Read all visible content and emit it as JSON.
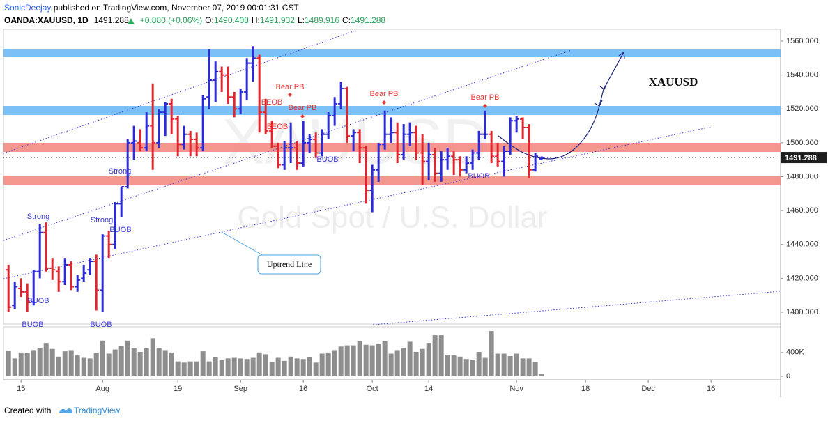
{
  "header": {
    "author": "SonicDeejay",
    "published": "published on TradingView.com, November 07, 2019 00:01:31 CST",
    "symbol": "OANDA:XAUUSD, 1D",
    "change": "+0.880 (+0.06%)",
    "open_label": "O:",
    "high_label": "H:",
    "low_label": "L:",
    "close_label": "C:"
  },
  "footer": {
    "created": "Created with",
    "brand": "TradingView"
  },
  "chart_data": {
    "type": "ohlc",
    "watermark": {
      "symbol": "XAUUSD",
      "description": "Gold Spot / U.S. Dollar"
    },
    "annotations": [
      "Strong",
      "Strong",
      "Strong",
      "BUOB",
      "BUOB",
      "BUOB",
      "BUOB",
      "BUOB",
      "BUOB",
      "BEOB",
      "BEOB",
      "Bear PB",
      "Bear PB",
      "Bear PB",
      "Bear PB",
      "XAUUSD",
      "Uptrend Line"
    ],
    "up_color": "#2b2bd9",
    "down_color": "#e3262e",
    "open": [
      1425,
      1404,
      1414,
      1412,
      1406,
      1424,
      1447,
      1426,
      1424,
      1418,
      1428,
      1415,
      1420,
      1425,
      1430,
      1413,
      1445,
      1440,
      1464,
      1474,
      1500,
      1500,
      1497,
      1510,
      1500,
      1518,
      1523,
      1514,
      1499,
      1505,
      1502,
      1497,
      1527,
      1537,
      1542,
      1540,
      1527,
      1520,
      1530,
      1547,
      1550,
      1518,
      1507,
      1498,
      1487,
      1497,
      1497,
      1488,
      1500,
      1502,
      1494,
      1505,
      1516,
      1523,
      1532,
      1504,
      1506,
      1497,
      1472,
      1484,
      1499,
      1505,
      1506,
      1493,
      1505,
      1506,
      1494,
      1489,
      1493,
      1482,
      1490,
      1492,
      1490,
      1484,
      1488,
      1494,
      1505,
      1505,
      1492,
      1489,
      1495,
      1513,
      1514,
      1509,
      1484,
      1490.408
    ],
    "high": [
      1428,
      1418,
      1420,
      1417,
      1425,
      1452,
      1453,
      1432,
      1427,
      1432,
      1430,
      1422,
      1428,
      1432,
      1434,
      1446,
      1448,
      1465,
      1474,
      1502,
      1510,
      1508,
      1518,
      1535,
      1520,
      1524,
      1526,
      1516,
      1510,
      1507,
      1506,
      1528,
      1555,
      1548,
      1545,
      1545,
      1530,
      1532,
      1550,
      1557,
      1552,
      1526,
      1513,
      1500,
      1501,
      1512,
      1501,
      1513,
      1505,
      1506,
      1508,
      1518,
      1527,
      1536,
      1533,
      1508,
      1508,
      1498,
      1487,
      1500,
      1519,
      1515,
      1512,
      1511,
      1512,
      1510,
      1505,
      1500,
      1497,
      1495,
      1497,
      1495,
      1492,
      1492,
      1496,
      1507,
      1519,
      1507,
      1500,
      1498,
      1515,
      1516,
      1515,
      1511,
      1494,
      1491.932
    ],
    "low": [
      1400,
      1402,
      1409,
      1400,
      1404,
      1420,
      1424,
      1419,
      1412,
      1416,
      1413,
      1412,
      1418,
      1422,
      1401,
      1400,
      1432,
      1437,
      1456,
      1473,
      1490,
      1495,
      1495,
      1484,
      1497,
      1504,
      1505,
      1492,
      1496,
      1492,
      1492,
      1495,
      1520,
      1524,
      1530,
      1523,
      1515,
      1517,
      1525,
      1536,
      1506,
      1505,
      1497,
      1485,
      1484,
      1488,
      1484,
      1486,
      1494,
      1491,
      1492,
      1502,
      1510,
      1520,
      1500,
      1495,
      1488,
      1464,
      1459,
      1477,
      1496,
      1500,
      1488,
      1490,
      1498,
      1490,
      1475,
      1478,
      1477,
      1477,
      1484,
      1481,
      1480,
      1482,
      1484,
      1490,
      1502,
      1488,
      1486,
      1480,
      1493,
      1506,
      1502,
      1479,
      1483,
      1489.916
    ],
    "close": [
      1403,
      1415,
      1412,
      1406,
      1424,
      1447,
      1426,
      1425,
      1418,
      1428,
      1415,
      1419,
      1423,
      1430,
      1413,
      1445,
      1440,
      1464,
      1474,
      1500,
      1501,
      1497,
      1510,
      1500,
      1518,
      1523,
      1514,
      1499,
      1505,
      1502,
      1497,
      1526,
      1537,
      1542,
      1540,
      1527,
      1520,
      1530,
      1547,
      1550,
      1518,
      1507,
      1498,
      1487,
      1497,
      1497,
      1488,
      1500,
      1502,
      1494,
      1505,
      1516,
      1523,
      1532,
      1504,
      1506,
      1497,
      1472,
      1484,
      1499,
      1505,
      1506,
      1493,
      1505,
      1506,
      1494,
      1489,
      1493,
      1482,
      1490,
      1492,
      1490,
      1484,
      1488,
      1494,
      1505,
      1505,
      1492,
      1489,
      1495,
      1513,
      1514,
      1509,
      1484,
      1492,
      1491.288
    ],
    "xlim": [
      -0.8,
      123.1
    ],
    "xticks": [
      {
        "value": 2,
        "label": "15"
      },
      {
        "value": 15,
        "label": "Aug"
      },
      {
        "value": 27,
        "label": "19"
      },
      {
        "value": 37,
        "label": "Sep"
      },
      {
        "value": 47,
        "label": "16"
      },
      {
        "value": 58,
        "label": "Oct"
      },
      {
        "value": 67,
        "label": "14"
      },
      {
        "value": 81,
        "label": "Nov"
      },
      {
        "value": 92,
        "label": "18"
      },
      {
        "value": 102,
        "label": "Dec"
      },
      {
        "value": 112,
        "label": "16"
      }
    ],
    "ylim": [
      1393,
      1567
    ],
    "yticks": [
      {
        "value": 1400,
        "label": "1400.000"
      },
      {
        "value": 1420,
        "label": "1420.000"
      },
      {
        "value": 1440,
        "label": "1440.000"
      },
      {
        "value": 1460,
        "label": "1460.000"
      },
      {
        "value": 1480,
        "label": "1480.000"
      },
      {
        "value": 1500,
        "label": "1500.000"
      },
      {
        "value": 1520,
        "label": "1520.000"
      },
      {
        "value": 1540,
        "label": "1540.000"
      },
      {
        "value": 1560,
        "label": "1560.000"
      }
    ],
    "volume": {
      "color": "#8e8e8e",
      "ylim": [
        -59000,
        820000
      ],
      "yticks": [
        0,
        {
          "value": 400000,
          "label": "400K"
        }
      ],
      "values": [
        430000,
        300000,
        400000,
        390000,
        440000,
        480000,
        560000,
        460000,
        330000,
        420000,
        440000,
        350000,
        310000,
        300000,
        390000,
        600000,
        380000,
        450000,
        510000,
        600000,
        480000,
        410000,
        470000,
        640000,
        480000,
        440000,
        400000,
        250000,
        230000,
        250000,
        250000,
        420000,
        250000,
        320000,
        270000,
        300000,
        310000,
        300000,
        290000,
        310000,
        400000,
        370000,
        240000,
        310000,
        260000,
        330000,
        300000,
        290000,
        320000,
        230000,
        380000,
        400000,
        440000,
        500000,
        520000,
        520000,
        590000,
        530000,
        520000,
        540000,
        590000,
        380000,
        440000,
        480000,
        580000,
        410000,
        460000,
        560000,
        690000,
        690000,
        360000,
        350000,
        330000,
        290000,
        280000,
        410000,
        310000,
        760000,
        380000,
        380000,
        340000,
        380000,
        300000,
        300000,
        240000,
        40000
      ]
    }
  }
}
